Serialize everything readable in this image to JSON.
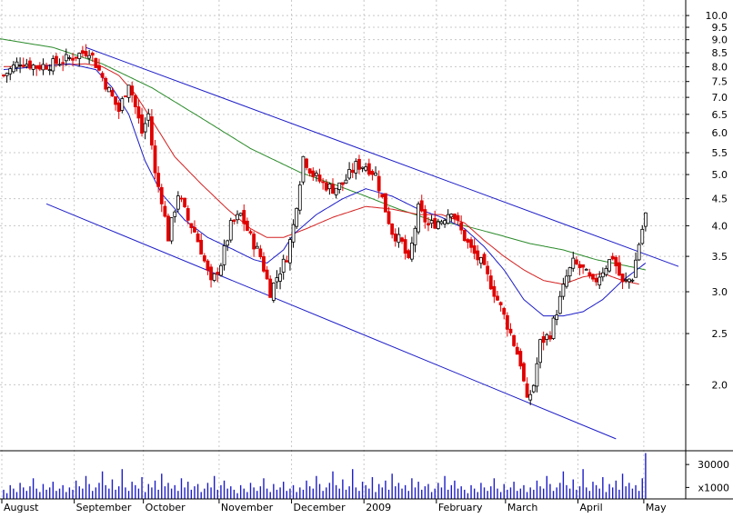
{
  "chart_data": {
    "type": "candlestick",
    "y_scale": "log",
    "ylim": [
      1.5,
      10.7
    ],
    "y_ticks": [
      {
        "value": 10.0,
        "label": "10.0"
      },
      {
        "value": 9.5,
        "label": "9.5"
      },
      {
        "value": 9.0,
        "label": "9.0"
      },
      {
        "value": 8.5,
        "label": "8.5"
      },
      {
        "value": 8.0,
        "label": "8.0"
      },
      {
        "value": 7.5,
        "label": "7.5"
      },
      {
        "value": 7.0,
        "label": "7.0"
      },
      {
        "value": 6.5,
        "label": "6.5"
      },
      {
        "value": 6.0,
        "label": "6.0"
      },
      {
        "value": 5.5,
        "label": "5.5"
      },
      {
        "value": 5.0,
        "label": "5.0"
      },
      {
        "value": 4.5,
        "label": "4.5"
      },
      {
        "value": 4.0,
        "label": "4.0"
      },
      {
        "value": 3.5,
        "label": "3.5"
      },
      {
        "value": 3.0,
        "label": "3.0"
      },
      {
        "value": 2.5,
        "label": "2.5"
      },
      {
        "value": 2.0,
        "label": "2.0"
      }
    ],
    "x_month_labels": [
      {
        "label": "August",
        "day": 0
      },
      {
        "label": "September",
        "day": 22
      },
      {
        "label": "October",
        "day": 43
      },
      {
        "label": "November",
        "day": 66
      },
      {
        "label": "December",
        "day": 88
      },
      {
        "label": "2009",
        "day": 110
      },
      {
        "label": "February",
        "day": 132
      },
      {
        "label": "March",
        "day": 153
      },
      {
        "label": "April",
        "day": 175
      },
      {
        "label": "May",
        "day": 195
      }
    ],
    "volume_ticks": [
      {
        "value": 30000,
        "label": "30000"
      },
      {
        "value": 10000,
        "label": "x1000"
      }
    ],
    "volume_max": 42000,
    "close_anchors": [
      [
        0,
        7.7
      ],
      [
        5,
        8.2
      ],
      [
        10,
        8.0
      ],
      [
        15,
        8.1
      ],
      [
        20,
        8.3
      ],
      [
        26,
        8.6
      ],
      [
        28,
        8.1
      ],
      [
        32,
        7.2
      ],
      [
        35,
        6.6
      ],
      [
        38,
        7.5
      ],
      [
        42,
        6.0
      ],
      [
        44,
        6.5
      ],
      [
        46,
        5.0
      ],
      [
        48,
        4.5
      ],
      [
        50,
        3.8
      ],
      [
        53,
        4.6
      ],
      [
        56,
        4.1
      ],
      [
        58,
        3.9
      ],
      [
        60,
        3.6
      ],
      [
        63,
        3.1
      ],
      [
        66,
        3.4
      ],
      [
        69,
        4.0
      ],
      [
        72,
        4.2
      ],
      [
        75,
        3.8
      ],
      [
        78,
        3.5
      ],
      [
        81,
        3.0
      ],
      [
        83,
        3.2
      ],
      [
        86,
        3.5
      ],
      [
        88,
        4.0
      ],
      [
        91,
        5.4
      ],
      [
        94,
        5.0
      ],
      [
        97,
        4.8
      ],
      [
        100,
        4.7
      ],
      [
        103,
        4.8
      ],
      [
        107,
        5.2
      ],
      [
        110,
        5.2
      ],
      [
        113,
        5.0
      ],
      [
        115,
        4.5
      ],
      [
        118,
        3.9
      ],
      [
        121,
        3.7
      ],
      [
        123,
        3.4
      ],
      [
        126,
        4.3
      ],
      [
        129,
        4.0
      ],
      [
        133,
        4.1
      ],
      [
        136,
        4.3
      ],
      [
        139,
        3.9
      ],
      [
        142,
        3.6
      ],
      [
        145,
        3.4
      ],
      [
        148,
        3.1
      ],
      [
        151,
        2.8
      ],
      [
        154,
        2.5
      ],
      [
        157,
        2.2
      ],
      [
        159,
        1.85
      ],
      [
        161,
        2.0
      ],
      [
        163,
        2.4
      ],
      [
        166,
        2.5
      ],
      [
        169,
        2.9
      ],
      [
        171,
        3.2
      ],
      [
        173,
        3.4
      ],
      [
        176,
        3.3
      ],
      [
        179,
        3.1
      ],
      [
        182,
        3.3
      ],
      [
        185,
        3.5
      ],
      [
        188,
        3.1
      ],
      [
        191,
        3.2
      ],
      [
        193,
        3.7
      ],
      [
        195,
        4.2
      ]
    ],
    "sma_short": [
      [
        0,
        7.9
      ],
      [
        20,
        8.1
      ],
      [
        28,
        7.9
      ],
      [
        33,
        7.3
      ],
      [
        38,
        6.5
      ],
      [
        43,
        5.3
      ],
      [
        48,
        4.6
      ],
      [
        55,
        4.1
      ],
      [
        62,
        3.8
      ],
      [
        70,
        3.6
      ],
      [
        76,
        3.45
      ],
      [
        80,
        3.4
      ],
      [
        85,
        3.6
      ],
      [
        88,
        3.85
      ],
      [
        95,
        4.2
      ],
      [
        103,
        4.5
      ],
      [
        110,
        4.7
      ],
      [
        118,
        4.55
      ],
      [
        126,
        4.3
      ],
      [
        133,
        4.15
      ],
      [
        140,
        3.95
      ],
      [
        146,
        3.65
      ],
      [
        152,
        3.3
      ],
      [
        158,
        2.9
      ],
      [
        164,
        2.7
      ],
      [
        170,
        2.7
      ],
      [
        176,
        2.75
      ],
      [
        182,
        2.9
      ],
      [
        188,
        3.15
      ],
      [
        195,
        3.4
      ]
    ],
    "sma_medium": [
      [
        0,
        8.0
      ],
      [
        25,
        8.1
      ],
      [
        30,
        8.0
      ],
      [
        35,
        7.7
      ],
      [
        40,
        7.1
      ],
      [
        46,
        6.2
      ],
      [
        52,
        5.4
      ],
      [
        60,
        4.8
      ],
      [
        68,
        4.3
      ],
      [
        75,
        3.95
      ],
      [
        80,
        3.8
      ],
      [
        85,
        3.8
      ],
      [
        92,
        3.95
      ],
      [
        100,
        4.15
      ],
      [
        110,
        4.35
      ],
      [
        118,
        4.3
      ],
      [
        126,
        4.2
      ],
      [
        133,
        4.2
      ],
      [
        140,
        4.05
      ],
      [
        146,
        3.75
      ],
      [
        152,
        3.5
      ],
      [
        158,
        3.3
      ],
      [
        164,
        3.15
      ],
      [
        170,
        3.1
      ],
      [
        176,
        3.2
      ],
      [
        182,
        3.25
      ],
      [
        188,
        3.15
      ],
      [
        193,
        3.1
      ]
    ],
    "sma_long": [
      [
        -4,
        9.1
      ],
      [
        15,
        8.7
      ],
      [
        30,
        8.1
      ],
      [
        45,
        7.3
      ],
      [
        60,
        6.4
      ],
      [
        75,
        5.6
      ],
      [
        90,
        5.05
      ],
      [
        100,
        4.8
      ],
      [
        110,
        4.55
      ],
      [
        120,
        4.3
      ],
      [
        130,
        4.1
      ],
      [
        140,
        4.0
      ],
      [
        150,
        3.85
      ],
      [
        160,
        3.7
      ],
      [
        170,
        3.6
      ],
      [
        180,
        3.45
      ],
      [
        190,
        3.35
      ],
      [
        195,
        3.3
      ]
    ],
    "channel_upper": [
      [
        25,
        8.7
      ],
      [
        205,
        3.35
      ]
    ],
    "channel_lower": [
      [
        13,
        4.4
      ],
      [
        186,
        1.58
      ]
    ],
    "volume_pattern": [
      8,
      5,
      12,
      9,
      6,
      14,
      10,
      7,
      11,
      18,
      9,
      6,
      13,
      8,
      10,
      15,
      7,
      9,
      12,
      6,
      10,
      8,
      16,
      11,
      9,
      20,
      13,
      7,
      10,
      14,
      24,
      12,
      9,
      17,
      8,
      11,
      26,
      10,
      7,
      15,
      12,
      9,
      19,
      6,
      13,
      10,
      16,
      8,
      22,
      11,
      14,
      9,
      12,
      7,
      18,
      10,
      15,
      8,
      11,
      13,
      6,
      9,
      14,
      10,
      20,
      8,
      12,
      16,
      9,
      11
    ]
  }
}
